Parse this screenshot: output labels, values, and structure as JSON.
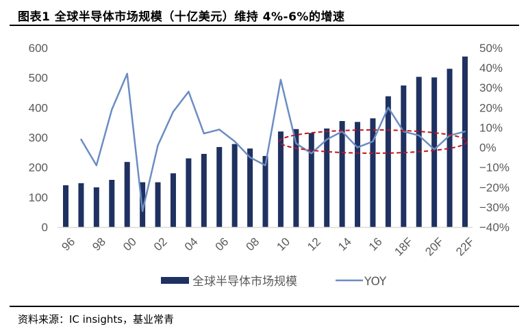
{
  "title": "图表1 全球半导体市场规模（十亿美元）维持 4%-6%的增速",
  "source": "资料来源：IC insights，基业常青",
  "colors": {
    "bar": "#1f3160",
    "line": "#6b8cc4",
    "highlight": "#c0141c",
    "axis": "#d9d9d9"
  },
  "chart_data": {
    "type": "bar+line",
    "categories": [
      "96",
      "",
      "98",
      "",
      "00",
      "",
      "02",
      "",
      "04",
      "",
      "06",
      "",
      "08",
      "",
      "10",
      "",
      "12",
      "",
      "14",
      "",
      "16",
      "",
      "18F",
      "",
      "20F",
      "",
      "22F"
    ],
    "series": [
      {
        "name": "全球半导体市场规模",
        "type": "bar",
        "axis": "left",
        "values": [
          140,
          147,
          133,
          158,
          218,
          150,
          150,
          180,
          230,
          245,
          268,
          278,
          263,
          238,
          320,
          328,
          315,
          330,
          355,
          352,
          364,
          438,
          474,
          503,
          501,
          530,
          571
        ]
      },
      {
        "name": "YOY",
        "type": "line",
        "axis": "right",
        "values": [
          null,
          4,
          -9,
          19,
          37,
          -32,
          1,
          18,
          28,
          7,
          9,
          3,
          -5,
          -9,
          34,
          2,
          -3,
          4,
          8,
          0,
          3,
          20,
          8,
          6,
          -1,
          6,
          8
        ]
      }
    ],
    "left_axis": {
      "ylim": [
        0,
        600
      ],
      "ticks": [
        0,
        100,
        200,
        300,
        400,
        500,
        600
      ]
    },
    "right_axis": {
      "ylim": [
        -40,
        50
      ],
      "ticks": [
        "-40%",
        "-30%",
        "-20%",
        "-10%",
        "0%",
        "10%",
        "20%",
        "30%",
        "40%",
        "50%"
      ]
    },
    "legend": {
      "position": "bottom",
      "entries": [
        "全球半导体市场规模",
        "YOY"
      ]
    },
    "annotation": "red dashed ellipse highlighting 2011–22F YOY band"
  }
}
